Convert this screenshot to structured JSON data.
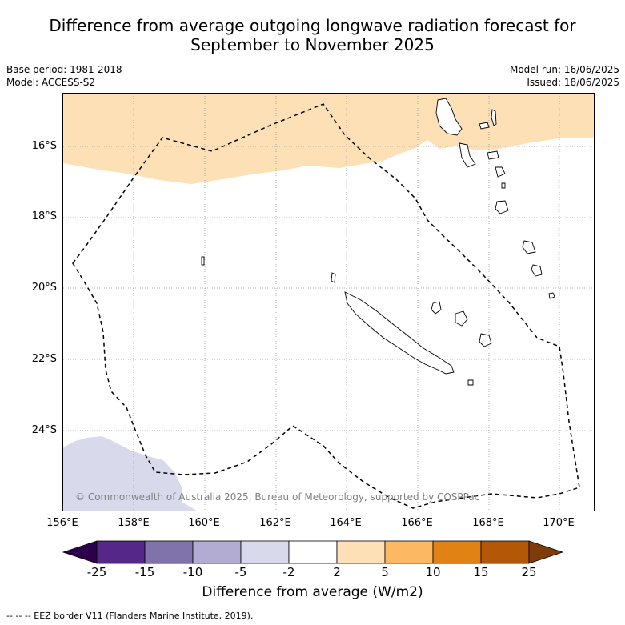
{
  "title_line1": "Difference from average outgoing longwave radiation forecast for",
  "title_line2": "September to November 2025",
  "base_period": "Base period: 1981-2018",
  "model": "Model: ACCESS-S2",
  "model_run": "Model run: 16/06/2025",
  "issued": "Issued: 18/06/2025",
  "lat_labels": [
    "16°S",
    "18°S",
    "20°S",
    "22°S",
    "24°S"
  ],
  "lon_labels": [
    "156°E",
    "158°E",
    "160°E",
    "162°E",
    "164°E",
    "166°E",
    "168°E",
    "170°E"
  ],
  "copyright": "© Commonwealth of Australia 2025, Bureau of Meteorology, supported by COSPPac",
  "colorbar": {
    "ticks": [
      "-25",
      "-15",
      "-10",
      "-5",
      "-2",
      "2",
      "5",
      "10",
      "15",
      "25"
    ],
    "colors": [
      "#2d004b",
      "#542788",
      "#8073ac",
      "#b2abd2",
      "#d8daeb",
      "#ffffff",
      "#fee0b6",
      "#fdb863",
      "#e08214",
      "#b35806",
      "#7f3b08"
    ],
    "title": "Difference from average (W/m2)"
  },
  "footnote": "--  --  -- EEZ border V11 (Flanders Marine Institute, 2019).",
  "map_colors": {
    "positive_2_5": "#fee0b6",
    "negative_2_5": "#d8daeb"
  }
}
